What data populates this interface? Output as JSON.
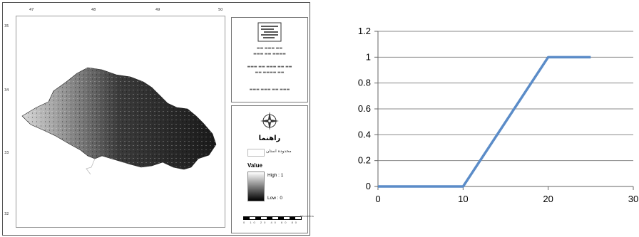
{
  "map": {
    "lon_ticks": [
      "47",
      "48",
      "49",
      "50"
    ],
    "lat_ticks": [
      "35",
      "34",
      "33",
      "32"
    ],
    "legend": {
      "title": "راهنما",
      "province_label": "محدوده استان",
      "value_title": "Value",
      "high_label": "High : 1",
      "low_label": "Low : 0",
      "scale_unit": "Kilometers",
      "scale_numbers": "0 10 20 40 60 80"
    }
  },
  "chart_data": {
    "type": "line",
    "x": [
      0,
      10,
      20,
      25
    ],
    "y": [
      0,
      0,
      1,
      1
    ],
    "xlim": [
      0,
      30
    ],
    "ylim": [
      0,
      1.2
    ],
    "x_ticks": [
      0,
      10,
      20,
      30
    ],
    "y_ticks": [
      0,
      0.2,
      0.4,
      0.6,
      0.8,
      1,
      1.2
    ],
    "grid": "horizontal",
    "line_color": "#5b8cc8",
    "title": "",
    "xlabel": "",
    "ylabel": ""
  }
}
